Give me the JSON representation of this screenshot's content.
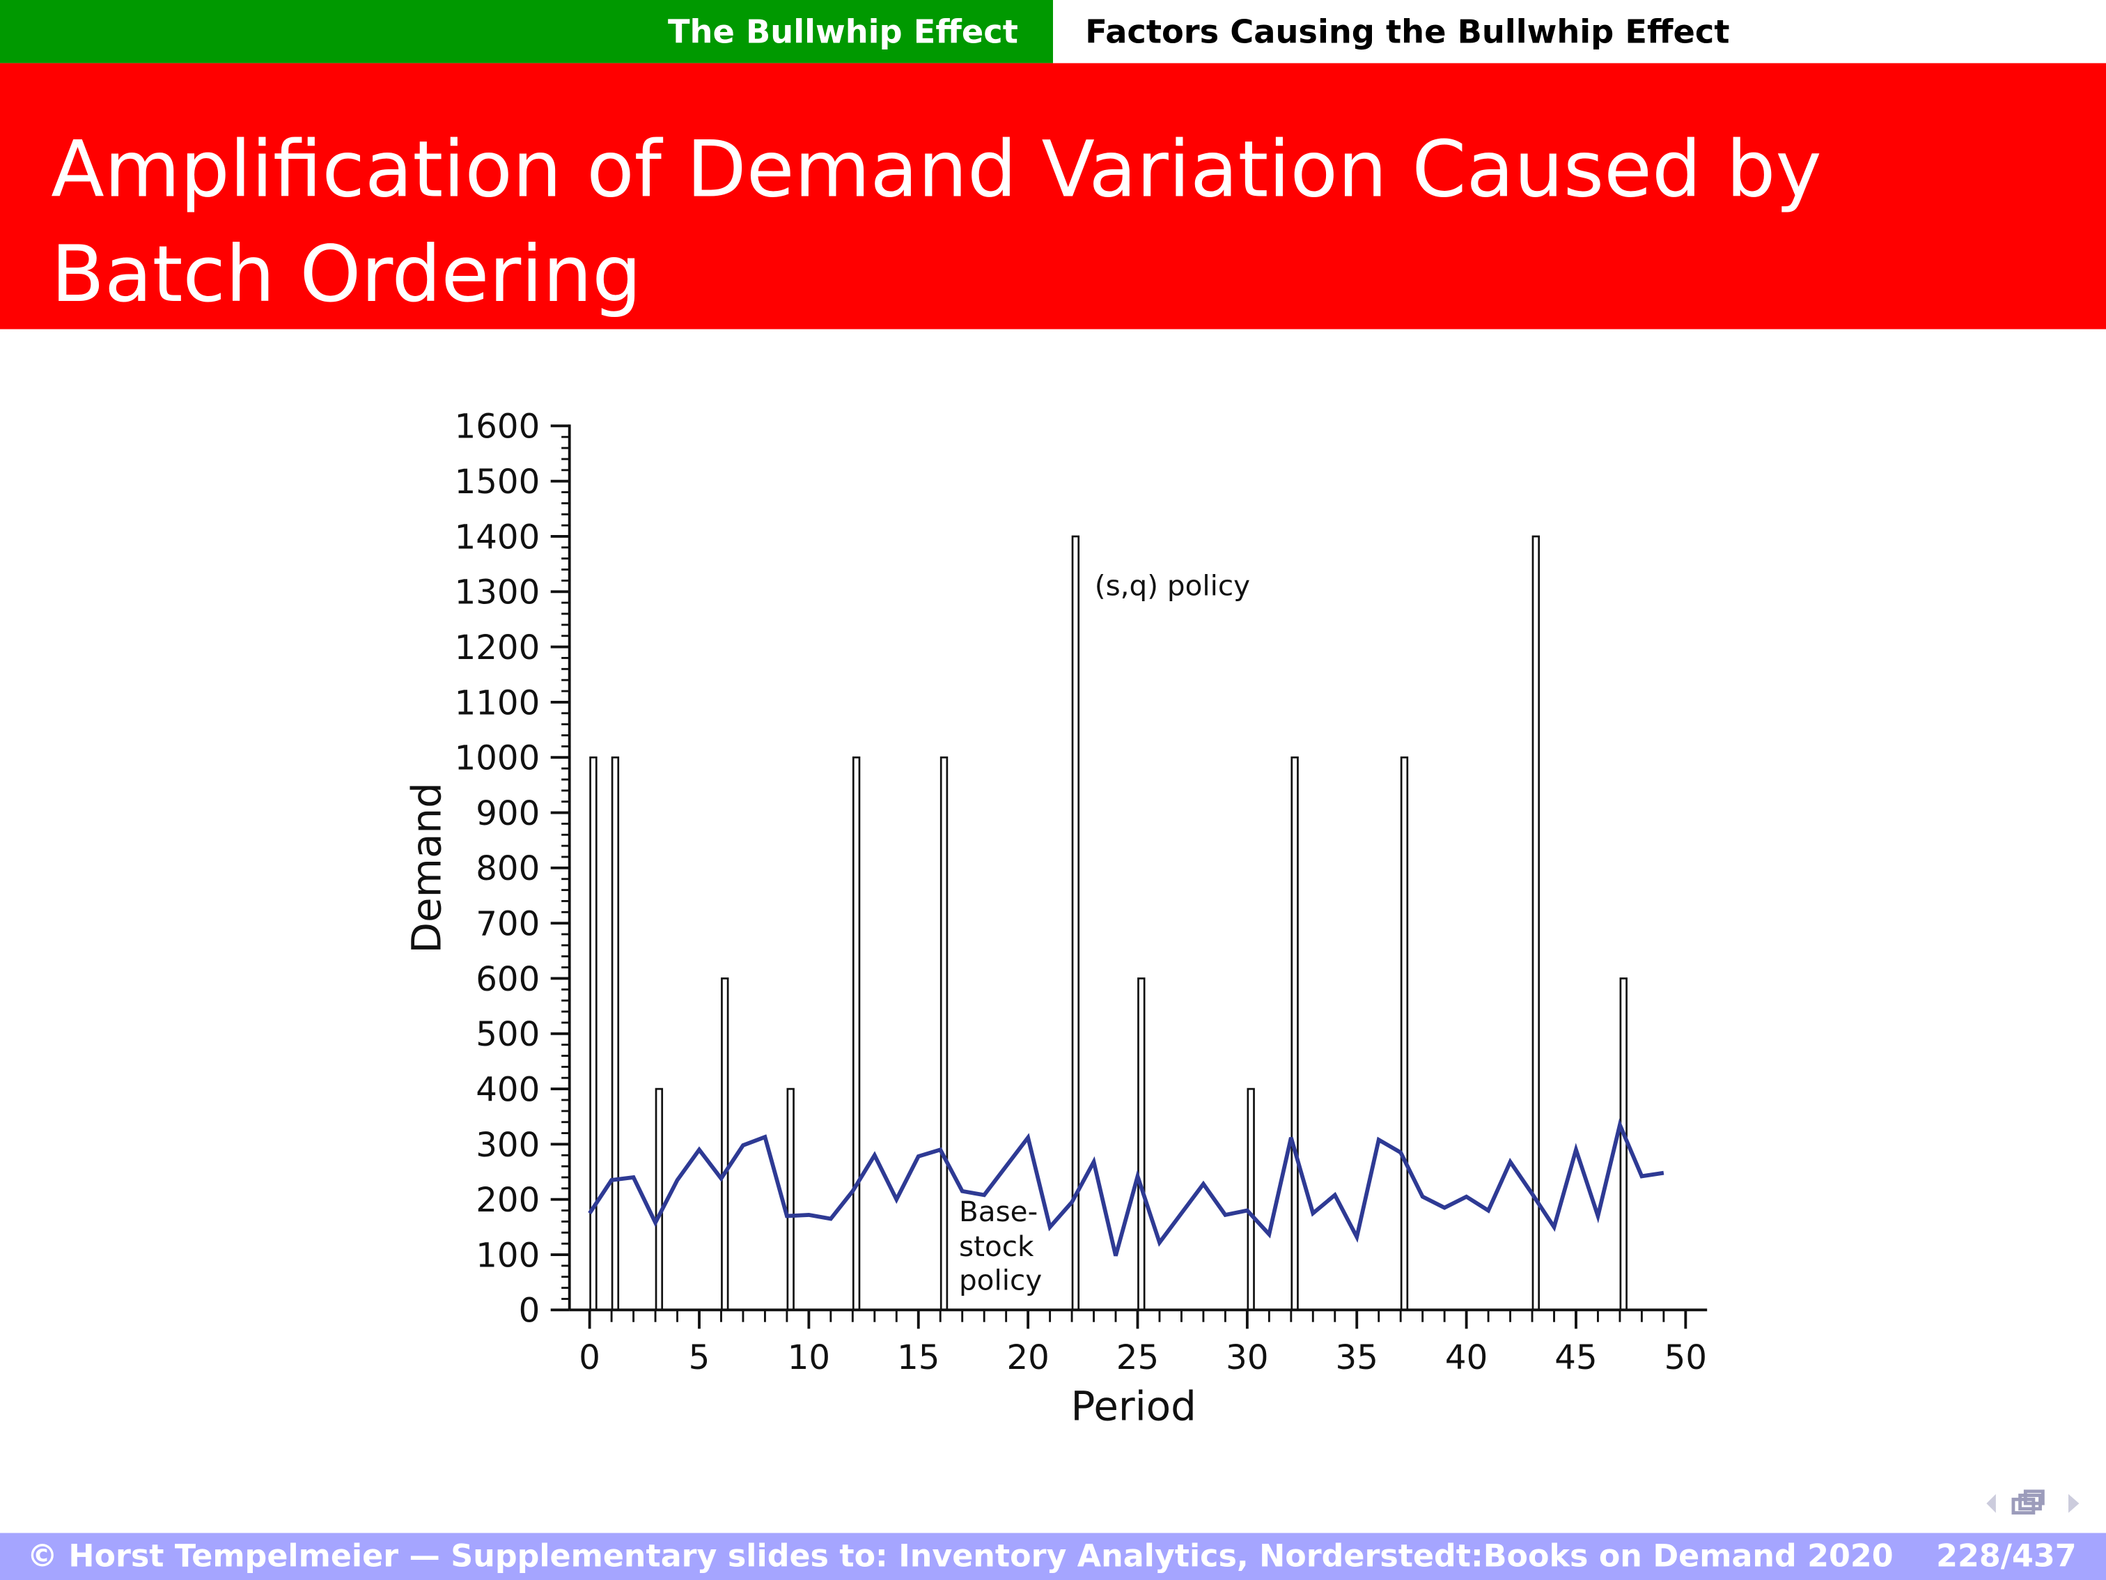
{
  "header": {
    "section": "The Bullwhip Effect",
    "subsection": "Factors Causing the Bullwhip Effect"
  },
  "title": "Amplification of Demand Variation Caused by Batch Ordering",
  "footer": {
    "credit": "© Horst Tempelmeier — Supplementary slides to: Inventory Analytics, Norderstedt:Books on Demand 2020",
    "page": "228/437"
  },
  "colors": {
    "green": "#009900",
    "red": "#ff0000",
    "footer": "#a5a5ff",
    "line": "#2e3a94"
  },
  "chart_data": {
    "type": "bar+line",
    "xlabel": "Period",
    "ylabel": "Demand",
    "xlim": [
      0,
      50
    ],
    "ylim": [
      0,
      1600
    ],
    "xticks": [
      0,
      5,
      10,
      15,
      20,
      25,
      30,
      35,
      40,
      45,
      50
    ],
    "yticks": [
      0,
      100,
      200,
      300,
      400,
      500,
      600,
      700,
      800,
      900,
      1000,
      1100,
      1200,
      1300,
      1400,
      1500,
      1600
    ],
    "annotations": {
      "bars": "(s,q) policy",
      "line": [
        "Base-",
        "stock",
        "policy"
      ]
    },
    "bars": {
      "name": "(s,q) policy",
      "periods": [
        0,
        1,
        3,
        6,
        9,
        12,
        16,
        22,
        25,
        30,
        32,
        37,
        43,
        47
      ],
      "values": [
        1000,
        1000,
        400,
        600,
        400,
        1000,
        1000,
        1400,
        600,
        400,
        1000,
        1000,
        1400,
        600
      ]
    },
    "line": {
      "name": "Base-stock policy",
      "periods": [
        0,
        1,
        2,
        3,
        4,
        5,
        6,
        7,
        8,
        9,
        10,
        11,
        12,
        13,
        14,
        15,
        16,
        17,
        18,
        19,
        20,
        21,
        22,
        23,
        24,
        25,
        26,
        27,
        28,
        29,
        30,
        31,
        32,
        33,
        34,
        35,
        36,
        37,
        38,
        39,
        40,
        41,
        42,
        43,
        44,
        45,
        46,
        47,
        48,
        49
      ],
      "values": [
        175,
        235,
        240,
        158,
        235,
        290,
        238,
        298,
        313,
        170,
        172,
        165,
        215,
        280,
        200,
        278,
        290,
        215,
        208,
        260,
        312,
        150,
        195,
        268,
        98,
        242,
        122,
        175,
        228,
        172,
        180,
        137,
        312,
        175,
        208,
        132,
        308,
        285,
        205,
        185,
        205,
        180,
        268,
        210,
        150,
        290,
        170,
        335,
        242,
        248
      ]
    }
  }
}
